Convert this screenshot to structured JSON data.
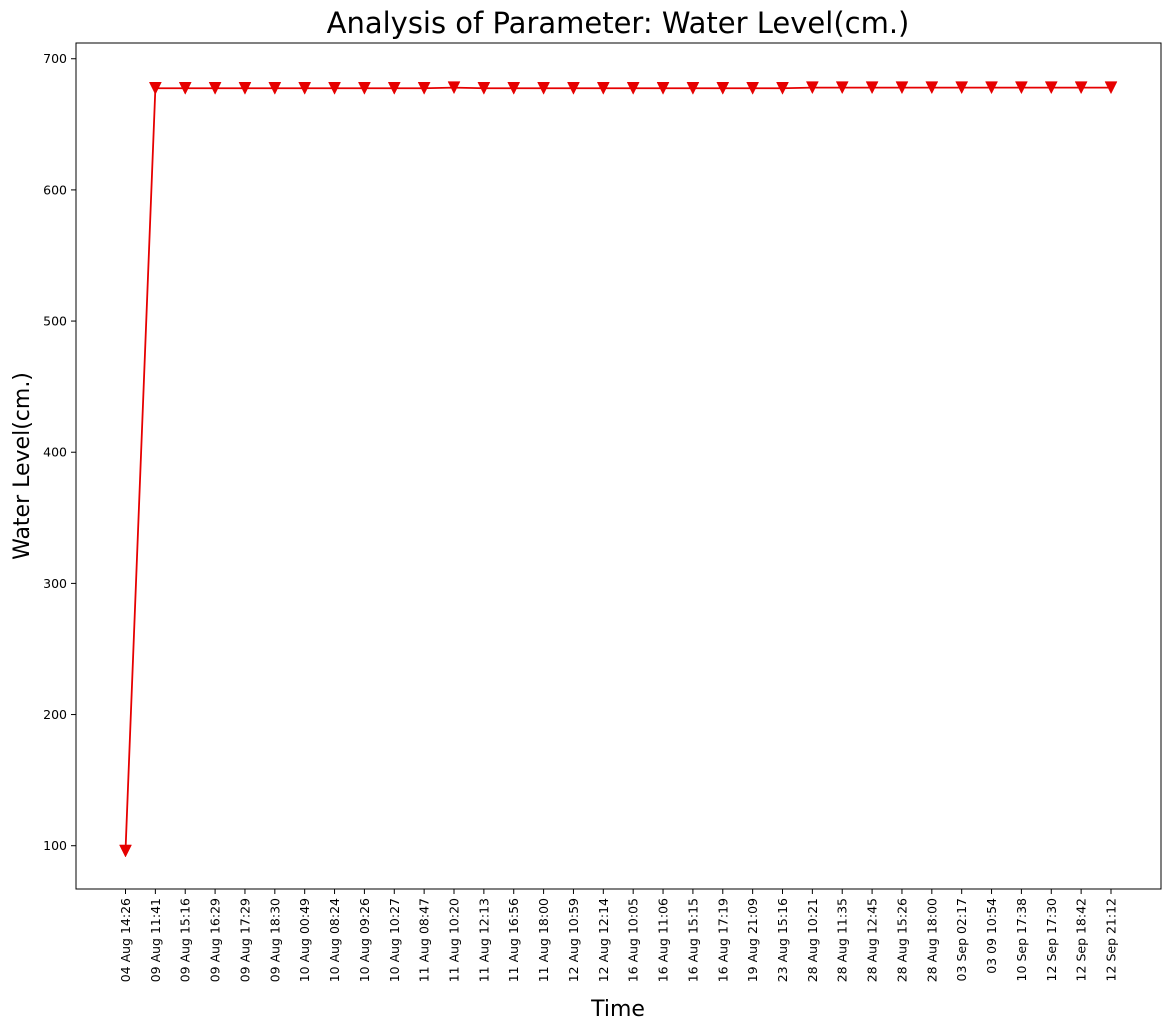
{
  "chart_data": {
    "type": "line",
    "title": "Analysis of Parameter: Water Level(cm.)",
    "xlabel": "Time",
    "ylabel": "Water Level(cm.)",
    "ylim": [
      67,
      712
    ],
    "yticks": [
      100,
      200,
      300,
      400,
      500,
      600,
      700
    ],
    "grid": false,
    "marker": "triangle-down",
    "color": "#e60000",
    "categories": [
      "04 Aug 14:26",
      "09 Aug 11:41",
      "09 Aug 15:16",
      "09 Aug 16:29",
      "09 Aug 17:29",
      "09 Aug 18:30",
      "10 Aug 00:49",
      "10 Aug 08:24",
      "10 Aug 09:26",
      "10 Aug 10:27",
      "11 Aug 08:47",
      "11 Aug 10:20",
      "11 Aug 12:13",
      "11 Aug 16:56",
      "11 Aug 18:00",
      "12 Aug 10:59",
      "12 Aug 12:14",
      "16 Aug 10:05",
      "16 Aug 11:06",
      "16 Aug 15:15",
      "16 Aug 17:19",
      "19 Aug 21:09",
      "23 Aug 15:16",
      "28 Aug 10:21",
      "28 Aug 11:35",
      "28 Aug 12:45",
      "28 Aug 15:26",
      "28 Aug 18:00",
      "03 Sep 02:17",
      "03 09 10:54",
      "10 Sep 17:38",
      "12 Sep 17:30",
      "12 Sep 18:42",
      "12 Sep 21:12"
    ],
    "series": [
      {
        "values": [
          96,
          677.5,
          677.5,
          677.5,
          677.5,
          677.5,
          677.5,
          677.5,
          677.5,
          677.5,
          677.5,
          678,
          677.5,
          677.5,
          677.5,
          677.5,
          677.5,
          677.5,
          677.5,
          677.5,
          677.5,
          677.5,
          677.5,
          678,
          678,
          678,
          678,
          678,
          678,
          678,
          678,
          678,
          678,
          678
        ]
      }
    ]
  }
}
